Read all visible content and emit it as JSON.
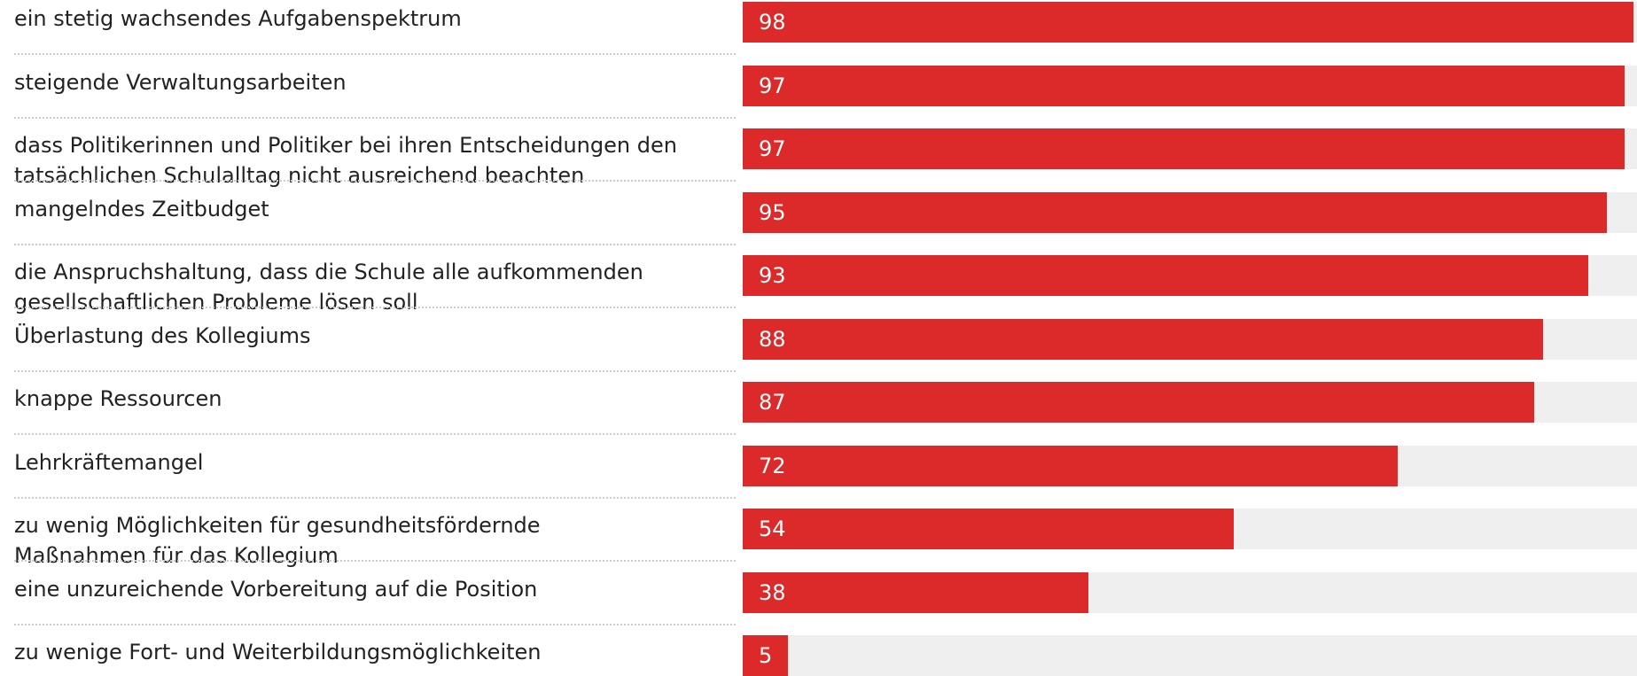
{
  "chart_data": {
    "type": "bar",
    "categories": [
      "ein stetig wachsendes Aufgabenspektrum",
      "steigende Verwaltungsarbeiten",
      "dass Politikerinnen und Politiker bei ihren Entscheidungen den\ntatsächlichen Schulalltag nicht ausreichend beachten",
      "mangelndes Zeitbudget",
      "die Anspruchshaltung, dass die Schule alle aufkommenden\ngesellschaftlichen Probleme lösen soll",
      "Überlastung des Kollegiums",
      "knappe Ressourcen",
      "Lehrkräftemangel",
      "zu wenig Möglichkeiten für gesundheitsfördernde\nMaßnahmen für das Kollegium",
      "eine unzureichende Vorbereitung auf die Position",
      "zu wenige Fort- und Weiterbildungsmöglichkeiten"
    ],
    "values": [
      98,
      97,
      97,
      95,
      93,
      88,
      87,
      72,
      54,
      38,
      5
    ],
    "color": "#dc2a2a",
    "track_color": "#efefef",
    "xlim": [
      0,
      100
    ]
  }
}
